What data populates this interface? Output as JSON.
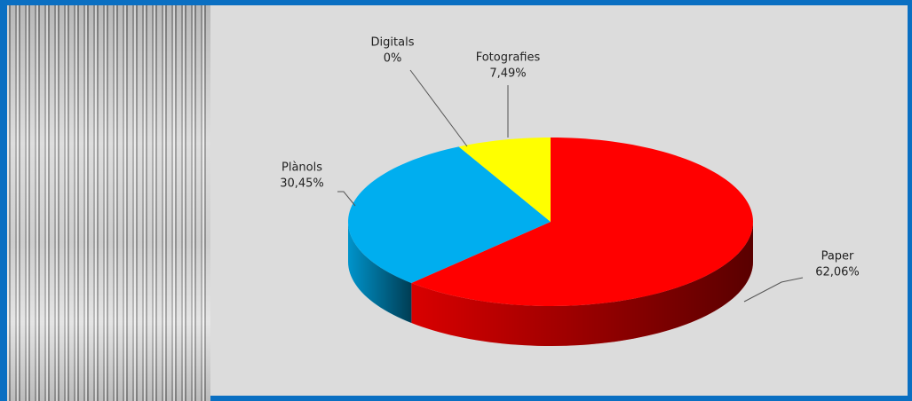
{
  "chart_data": {
    "type": "pie",
    "categories": [
      "Paper",
      "Plànols",
      "Fotografies",
      "Digitals"
    ],
    "values": [
      62.06,
      30.45,
      7.49,
      0
    ],
    "value_labels": [
      "62,06%",
      "30,45%",
      "7,49%",
      "0%"
    ],
    "colors": [
      "#ff0000",
      "#00aeef",
      "#ffff00",
      "#7f7f7f"
    ]
  }
}
